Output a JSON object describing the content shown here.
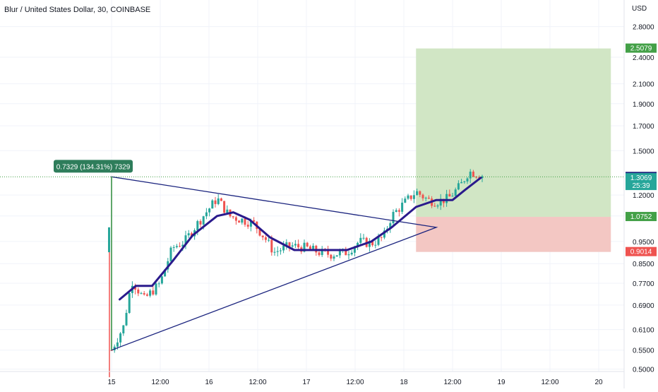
{
  "header": {
    "symbol_title": "Blur / United States Dollar, 30, COINBASE",
    "currency": "USD"
  },
  "colors": {
    "up": "#26a69a",
    "down": "#ef5350",
    "ma_line": "#2a1a8c",
    "triangle": "#1a237e",
    "target_zone": "#cfe5c2",
    "stop_zone": "#f2c4c0",
    "measure": "#43a047",
    "last_price_badge": "#1a237e"
  },
  "chart_data": {
    "type": "line",
    "title": "Blur / United States Dollar, 30, COINBASE",
    "xlabel": "",
    "ylabel": "USD",
    "scale": "log",
    "ylim": [
      0.47,
      3.2
    ],
    "grid": true,
    "x_tick_labels": [
      "15",
      "12:00",
      "16",
      "12:00",
      "17",
      "12:00",
      "18",
      "12:00",
      "19",
      "12:00",
      "20"
    ],
    "y_tick_labels": [
      "2.8000",
      "2.4000",
      "2.1000",
      "1.9000",
      "1.7000",
      "1.5000",
      "1.2000",
      "1.0800",
      "0.9500",
      "0.8500",
      "0.7700",
      "0.6900",
      "0.6100",
      "0.5500",
      "0.5000"
    ],
    "y_ticks": [
      2.8,
      2.4,
      2.1,
      1.9,
      1.7,
      1.5,
      1.2,
      1.08,
      0.95,
      0.85,
      0.77,
      0.69,
      0.61,
      0.55,
      0.5
    ],
    "price_series": [
      [
        "15 00:00",
        0.55
      ],
      [
        "15 03:00",
        0.62
      ],
      [
        "15 05:00",
        0.78
      ],
      [
        "15 08:00",
        0.71
      ],
      [
        "15 10:00",
        0.74
      ],
      [
        "15 12:00",
        0.77
      ],
      [
        "15 15:00",
        0.92
      ],
      [
        "15 18:00",
        0.95
      ],
      [
        "16 00:00",
        1.12
      ],
      [
        "16 02:00",
        1.18
      ],
      [
        "16 05:00",
        1.08
      ],
      [
        "16 08:00",
        1.06
      ],
      [
        "16 11:00",
        1.04
      ],
      [
        "16 14:00",
        0.96
      ],
      [
        "16 16:00",
        0.9
      ],
      [
        "16 20:00",
        0.93
      ],
      [
        "17 00:00",
        0.92
      ],
      [
        "17 03:00",
        0.9
      ],
      [
        "17 06:00",
        0.89
      ],
      [
        "17 10:00",
        0.9
      ],
      [
        "17 13:00",
        0.95
      ],
      [
        "17 16:00",
        0.94
      ],
      [
        "17 19:00",
        0.97
      ],
      [
        "17 21:00",
        1.08
      ],
      [
        "18 00:00",
        1.15
      ],
      [
        "18 03:00",
        1.22
      ],
      [
        "18 06:00",
        1.17
      ],
      [
        "18 08:00",
        1.16
      ],
      [
        "18 11:00",
        1.18
      ],
      [
        "18 14:00",
        1.26
      ],
      [
        "18 16:00",
        1.35
      ],
      [
        "18 19:00",
        1.33
      ],
      [
        "18 20:00",
        1.31
      ]
    ],
    "moving_average": [
      [
        "15 02:00",
        0.71
      ],
      [
        "15 06:00",
        0.76
      ],
      [
        "15 10:00",
        0.76
      ],
      [
        "15 15:00",
        0.86
      ],
      [
        "15 20:00",
        0.98
      ],
      [
        "16 02:00",
        1.08
      ],
      [
        "16 06:00",
        1.1
      ],
      [
        "16 10:00",
        1.06
      ],
      [
        "16 15:00",
        0.97
      ],
      [
        "16 21:00",
        0.91
      ],
      [
        "17 04:00",
        0.91
      ],
      [
        "17 10:00",
        0.91
      ],
      [
        "17 16:00",
        0.95
      ],
      [
        "17 21:00",
        1.02
      ],
      [
        "18 03:00",
        1.13
      ],
      [
        "18 08:00",
        1.17
      ],
      [
        "18 12:00",
        1.17
      ],
      [
        "18 15:00",
        1.23
      ],
      [
        "18 19:00",
        1.31
      ]
    ],
    "triangle": {
      "apex_top": [
        "15 00:00",
        1.3152
      ],
      "apex_bottom": [
        "15 00:00",
        0.55
      ],
      "right": [
        "18 08:00",
        1.02
      ]
    },
    "measure_label": "0.7329 (134.31%) 7329",
    "position": {
      "entry": 1.0752,
      "target": 2.5079,
      "stop": 0.9014
    },
    "price_labels": [
      {
        "name": "target",
        "text": "2.5079",
        "value": 2.5079,
        "color": "#43a047"
      },
      {
        "name": "high-line",
        "text": "1.3152",
        "value": 1.3152,
        "color": "#1a237e"
      },
      {
        "name": "last-price",
        "text": "1.3069",
        "value": 1.3069,
        "color": "#26a69a",
        "countdown": "25:39"
      },
      {
        "name": "entry",
        "text": "1.0752",
        "value": 1.0752,
        "color": "#43a047"
      },
      {
        "name": "stop",
        "text": "0.9014",
        "value": 0.9014,
        "color": "#ef5350"
      }
    ]
  }
}
